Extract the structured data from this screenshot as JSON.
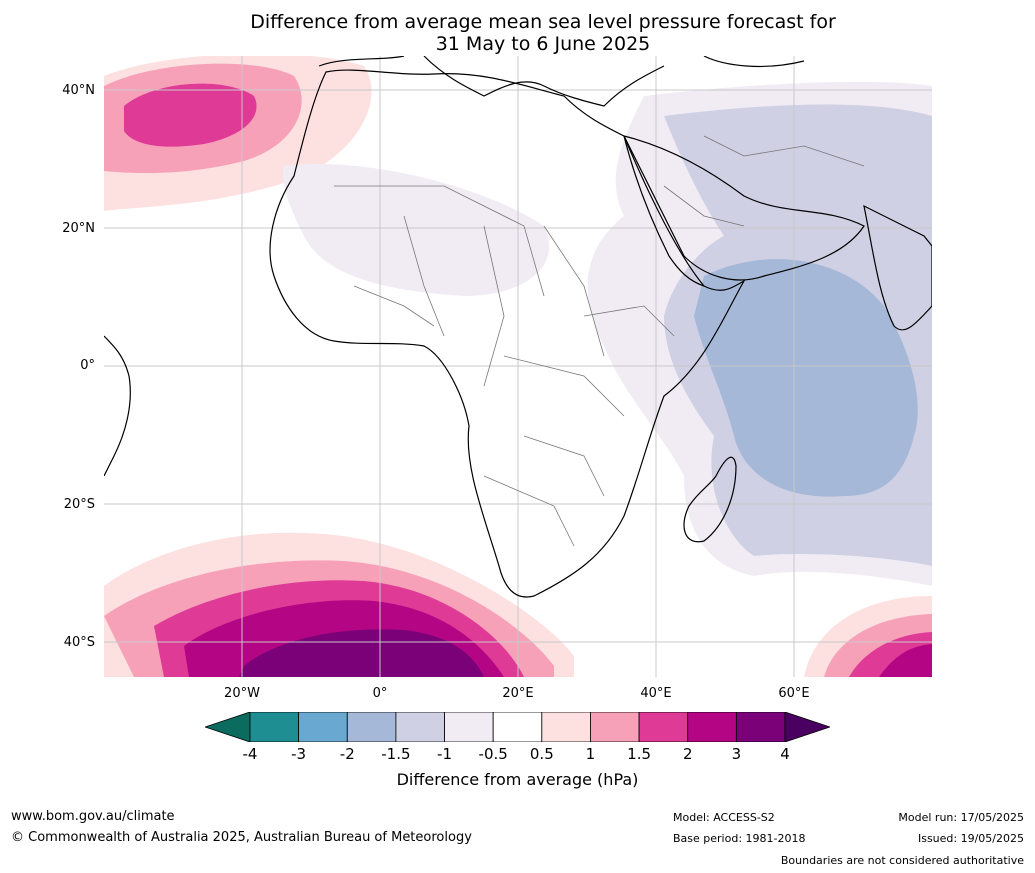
{
  "title": {
    "line1": "Difference from average mean sea level pressure forecast for",
    "line2": "31 May to 6 June 2025"
  },
  "map": {
    "lat_labels": [
      "40°N",
      "20°N",
      "0°",
      "20°S",
      "40°S"
    ],
    "lon_labels": [
      "20°W",
      "0°",
      "20°E",
      "40°E",
      "60°E"
    ]
  },
  "colorbar": {
    "ticks": [
      "-4",
      "-3",
      "-2",
      "-1.5",
      "-1",
      "-0.5",
      "0.5",
      "1",
      "1.5",
      "2",
      "3",
      "4"
    ],
    "colors": {
      "below": "#0b6b5e",
      "bins": [
        "#1f8e93",
        "#69a9d1",
        "#a6b8d8",
        "#cfd0e4",
        "#f1ecf4",
        "#ffffff",
        "#fde0e0",
        "#f7a1b8",
        "#de3a96",
        "#b40585",
        "#7a0177"
      ],
      "above": "#4a0060"
    },
    "label": "Difference from average (hPa)"
  },
  "footer": {
    "url": "www.bom.gov.au/climate",
    "copyright": "© Commonwealth of Australia 2025, Australian Bureau of Meteorology",
    "model": "Model: ACCESS-S2",
    "base_period": "Base period: 1981-2018",
    "model_run": "Model run: 17/05/2025",
    "issued": "Issued: 19/05/2025",
    "boundaries": "Boundaries are not considered authoritative"
  }
}
